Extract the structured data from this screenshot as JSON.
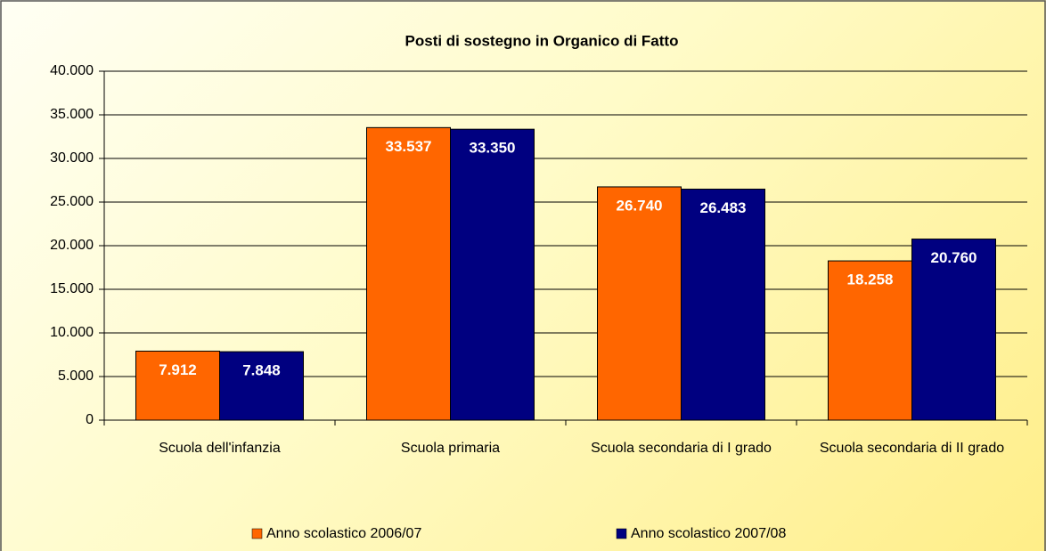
{
  "chart_data": {
    "type": "bar",
    "title": "Posti di sostegno in Organico di Fatto",
    "categories": [
      "Scuola dell'infanzia",
      "Scuola primaria",
      "Scuola secondaria di I grado",
      "Scuola secondaria di II grado"
    ],
    "series": [
      {
        "name": "Anno scolastico 2006/07",
        "color": "#ff6600",
        "values": [
          7912,
          33537,
          26740,
          18258
        ],
        "value_labels": [
          "7.912",
          "33.537",
          "26.740",
          "18.258"
        ]
      },
      {
        "name": "Anno scolastico 2007/08",
        "color": "#000080",
        "values": [
          7848,
          33350,
          26483,
          20760
        ],
        "value_labels": [
          "7.848",
          "33.350",
          "26.483",
          "20.760"
        ]
      }
    ],
    "ylim": [
      0,
      40000
    ],
    "yticks": [
      0,
      {
        "value": 5000,
        "label": "5.000"
      },
      {
        "value": 10000,
        "label": "10.000"
      },
      {
        "value": 15000,
        "label": "15.000"
      },
      {
        "value": 20000,
        "label": "20.000"
      },
      {
        "value": 25000,
        "label": "25.000"
      },
      {
        "value": 30000,
        "label": "30.000"
      },
      {
        "value": 35000,
        "label": "35.000"
      },
      {
        "value": 40000,
        "label": "40.000"
      }
    ],
    "grid": true,
    "legend": "bottom"
  }
}
